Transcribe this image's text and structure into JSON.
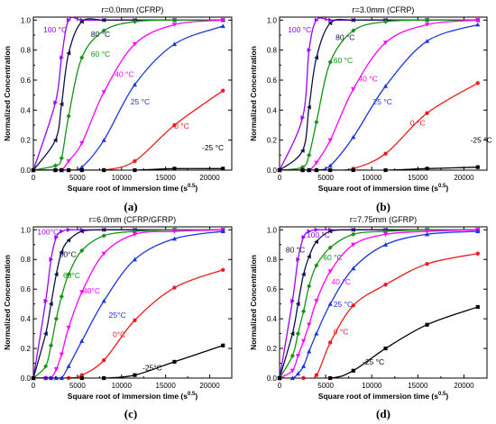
{
  "figure": {
    "xlabel": "Square root of immersion time (s",
    "xlabel_exp": "0.5",
    "xlabel_close": ")",
    "ylabel": "Normalized Concentration",
    "x_ticks": [
      "0",
      "5000",
      "10000",
      "15000",
      "20000"
    ],
    "y_ticks": [
      "0.0",
      "0.2",
      "0.4",
      "0.6",
      "0.8",
      "1.0"
    ]
  },
  "chart_data": [
    {
      "type": "line",
      "caption": "(a)",
      "title": "r=0.0mm (CFRP)",
      "xlim": [
        0,
        22500
      ],
      "ylim": [
        0,
        1.02
      ],
      "series": [
        {
          "name": "100 °C",
          "color": "#9b00ff",
          "marker": "triangle-right",
          "x": [
            0,
            2500,
            3200,
            4000,
            5500,
            8000,
            11500,
            16000,
            21500
          ],
          "y": [
            0,
            0.45,
            0.75,
            1.0,
            1.0,
            1.0,
            1.0,
            1.0,
            1.0
          ]
        },
        {
          "name": "80 °C",
          "color": "#10104a",
          "marker": "triangle-left",
          "x": [
            0,
            2500,
            3200,
            4000,
            5500,
            8000,
            11500,
            16000,
            21500
          ],
          "y": [
            0,
            0.2,
            0.44,
            0.78,
            0.99,
            1.0,
            1.0,
            1.0,
            1.0
          ]
        },
        {
          "name": "60 °C",
          "color": "#139413",
          "marker": "diamond",
          "x": [
            0,
            2500,
            3200,
            4000,
            5500,
            8000,
            11500,
            16000,
            21500
          ],
          "y": [
            0,
            0.03,
            0.08,
            0.36,
            0.75,
            0.93,
            0.99,
            1.0,
            1.0
          ]
        },
        {
          "name": "40 °C",
          "color": "#ff00ff",
          "marker": "triangle-down",
          "x": [
            0,
            2500,
            3200,
            4000,
            5500,
            8000,
            11500,
            16000,
            21500
          ],
          "y": [
            0,
            0,
            0,
            0.06,
            0.18,
            0.52,
            0.84,
            0.97,
            1.0
          ]
        },
        {
          "name": "25 °C",
          "color": "#1a36e0",
          "marker": "triangle-up",
          "x": [
            0,
            2500,
            3200,
            4000,
            5500,
            8000,
            11500,
            16000,
            21500
          ],
          "y": [
            0,
            0,
            0,
            0,
            0.02,
            0.2,
            0.57,
            0.84,
            0.96
          ]
        },
        {
          "name": "0 °C",
          "color": "#ee1c1c",
          "marker": "circle",
          "x": [
            0,
            2500,
            3200,
            4000,
            5500,
            8000,
            11500,
            16000,
            21500
          ],
          "y": [
            0,
            0,
            0,
            0,
            0,
            0,
            0.06,
            0.3,
            0.53
          ]
        },
        {
          "name": "-25 °C",
          "color": "#000000",
          "marker": "square",
          "x": [
            0,
            2500,
            3200,
            4000,
            5500,
            8000,
            11500,
            16000,
            21500
          ],
          "y": [
            0,
            0,
            0,
            0,
            0,
            0,
            0,
            0.01,
            0.01
          ]
        }
      ]
    },
    {
      "type": "line",
      "caption": "(b)",
      "title": "r=3.0mm (CFRP)",
      "xlim": [
        0,
        22500
      ],
      "ylim": [
        0,
        1.02
      ],
      "series": [
        {
          "name": "100 °C",
          "color": "#9b00ff",
          "marker": "triangle-right",
          "x": [
            0,
            2500,
            3200,
            4000,
            5500,
            8000,
            11500,
            16000,
            21500
          ],
          "y": [
            0,
            0.35,
            0.8,
            1.0,
            1.0,
            1.0,
            1.0,
            1.0,
            1.0
          ]
        },
        {
          "name": "80 °C",
          "color": "#10104a",
          "marker": "triangle-left",
          "x": [
            0,
            2500,
            3200,
            4000,
            5500,
            8000,
            11500,
            16000,
            21500
          ],
          "y": [
            0,
            0.13,
            0.42,
            0.75,
            0.98,
            1.0,
            1.0,
            1.0,
            1.0
          ]
        },
        {
          "name": "60 °C",
          "color": "#139413",
          "marker": "diamond",
          "x": [
            0,
            2500,
            3200,
            4000,
            5500,
            8000,
            11500,
            16000,
            21500
          ],
          "y": [
            0,
            0.02,
            0.1,
            0.32,
            0.72,
            0.93,
            0.99,
            1.0,
            1.0
          ]
        },
        {
          "name": "40 °C",
          "color": "#ff00ff",
          "marker": "triangle-down",
          "x": [
            0,
            2500,
            3200,
            4000,
            5500,
            8000,
            11500,
            16000,
            21500
          ],
          "y": [
            0,
            0,
            0,
            0.05,
            0.2,
            0.54,
            0.85,
            0.97,
            1.0
          ]
        },
        {
          "name": "25 °C",
          "color": "#1a36e0",
          "marker": "triangle-up",
          "x": [
            0,
            2500,
            3200,
            4000,
            5500,
            8000,
            11500,
            16000,
            21500
          ],
          "y": [
            0,
            0,
            0,
            0,
            0.03,
            0.22,
            0.56,
            0.86,
            0.97
          ]
        },
        {
          "name": "0 °C",
          "color": "#ee1c1c",
          "marker": "circle",
          "x": [
            0,
            2500,
            3200,
            4000,
            5500,
            8000,
            11500,
            16000,
            21500
          ],
          "y": [
            0,
            0,
            0,
            0,
            0,
            0.01,
            0.11,
            0.38,
            0.58
          ]
        },
        {
          "name": "-25 °C",
          "color": "#000000",
          "marker": "square",
          "x": [
            0,
            2500,
            3200,
            4000,
            5500,
            8000,
            11500,
            16000,
            21500
          ],
          "y": [
            0,
            0,
            0,
            0,
            0,
            0,
            0,
            0.01,
            0.02
          ]
        }
      ]
    },
    {
      "type": "line",
      "caption": "(c)",
      "title": "r=6.0mm (CFRP/GFRP)",
      "xlim": [
        0,
        22500
      ],
      "ylim": [
        0,
        1.02
      ],
      "series": [
        {
          "name": "100°C",
          "color": "#9b00ff",
          "marker": "triangle-right",
          "x": [
            0,
            1400,
            2000,
            2600,
            3200,
            4000,
            5500,
            8000,
            11500,
            16000,
            21500
          ],
          "y": [
            0,
            0.52,
            0.8,
            0.95,
            0.99,
            1.0,
            1.0,
            1.0,
            1.0,
            1.0,
            1.0
          ]
        },
        {
          "name": "80°C",
          "color": "#10104a",
          "marker": "triangle-left",
          "x": [
            0,
            1400,
            2000,
            2600,
            3200,
            4000,
            5500,
            8000,
            11500,
            16000,
            21500
          ],
          "y": [
            0,
            0.3,
            0.5,
            0.7,
            0.85,
            0.93,
            0.99,
            1.0,
            1.0,
            1.0,
            1.0
          ]
        },
        {
          "name": "60°C",
          "color": "#139413",
          "marker": "diamond",
          "x": [
            0,
            1400,
            2000,
            2600,
            3200,
            4000,
            5500,
            8000,
            11500,
            16000,
            21500
          ],
          "y": [
            0,
            0.08,
            0.22,
            0.4,
            0.55,
            0.7,
            0.86,
            0.96,
            0.99,
            1.0,
            1.0
          ]
        },
        {
          "name": "40°C",
          "color": "#ff00ff",
          "marker": "triangle-down",
          "x": [
            0,
            1400,
            2000,
            2600,
            3200,
            4000,
            5500,
            8000,
            11500,
            16000,
            21500
          ],
          "y": [
            0,
            0,
            0,
            0.06,
            0.16,
            0.34,
            0.58,
            0.84,
            0.97,
            0.99,
            1.0
          ]
        },
        {
          "name": "25°C",
          "color": "#1a36e0",
          "marker": "triangle-up",
          "x": [
            0,
            1400,
            2000,
            2600,
            3200,
            4000,
            5500,
            8000,
            11500,
            16000,
            21500
          ],
          "y": [
            0,
            0,
            0,
            0,
            0,
            0.08,
            0.25,
            0.52,
            0.8,
            0.94,
            0.99
          ]
        },
        {
          "name": "0°C",
          "color": "#ee1c1c",
          "marker": "circle",
          "x": [
            0,
            4000,
            5500,
            8000,
            11500,
            16000,
            21500
          ],
          "y": [
            0,
            0,
            0.02,
            0.12,
            0.39,
            0.61,
            0.73
          ]
        },
        {
          "name": "-25°C",
          "color": "#000000",
          "marker": "square",
          "x": [
            0,
            5500,
            8000,
            11500,
            16000,
            21500
          ],
          "y": [
            0,
            0,
            0,
            0.02,
            0.11,
            0.22
          ]
        }
      ]
    },
    {
      "type": "line",
      "caption": "(d)",
      "title": "r=7.75mm (GFRP)",
      "xlim": [
        0,
        22500
      ],
      "ylim": [
        0,
        1.02
      ],
      "series": [
        {
          "name": "100 °C",
          "color": "#9b00ff",
          "marker": "triangle-right",
          "x": [
            0,
            1400,
            2000,
            2600,
            3200,
            4000,
            5500,
            8000,
            11500,
            16000,
            21500
          ],
          "y": [
            0,
            0.52,
            0.8,
            0.95,
            0.99,
            1.0,
            1.0,
            1.0,
            1.0,
            1.0,
            1.0
          ]
        },
        {
          "name": "80 °C",
          "color": "#10104a",
          "marker": "triangle-left",
          "x": [
            0,
            1400,
            2000,
            2600,
            3200,
            4000,
            5500,
            8000,
            11500,
            16000,
            21500
          ],
          "y": [
            0,
            0.3,
            0.5,
            0.7,
            0.82,
            0.92,
            0.99,
            1.0,
            1.0,
            1.0,
            1.0
          ]
        },
        {
          "name": "60 °C",
          "color": "#139413",
          "marker": "diamond",
          "x": [
            0,
            1400,
            2000,
            2600,
            3200,
            4000,
            5500,
            8000,
            11500,
            16000,
            21500
          ],
          "y": [
            0,
            0.15,
            0.3,
            0.45,
            0.62,
            0.76,
            0.88,
            0.97,
            0.99,
            1.0,
            1.0
          ]
        },
        {
          "name": "40 °C",
          "color": "#ff00ff",
          "marker": "triangle-down",
          "x": [
            0,
            1400,
            2000,
            2600,
            3200,
            4000,
            5500,
            8000,
            11500,
            16000,
            21500
          ],
          "y": [
            0,
            0.05,
            0.15,
            0.25,
            0.36,
            0.52,
            0.72,
            0.9,
            0.97,
            0.99,
            1.0
          ]
        },
        {
          "name": "25 °C",
          "color": "#1a36e0",
          "marker": "triangle-up",
          "x": [
            0,
            1400,
            2000,
            2600,
            3200,
            4000,
            5500,
            8000,
            11500,
            16000,
            21500
          ],
          "y": [
            0,
            0,
            0.03,
            0.08,
            0.18,
            0.3,
            0.5,
            0.74,
            0.9,
            0.97,
            0.99
          ]
        },
        {
          "name": "0 °C",
          "color": "#ee1c1c",
          "marker": "circle",
          "x": [
            0,
            2600,
            4000,
            5500,
            8000,
            11500,
            16000,
            21500
          ],
          "y": [
            0,
            0,
            0.02,
            0.24,
            0.49,
            0.63,
            0.77,
            0.84
          ]
        },
        {
          "name": "-25 °C",
          "color": "#000000",
          "marker": "square",
          "x": [
            0,
            5500,
            8000,
            11500,
            16000,
            21500
          ],
          "y": [
            0,
            0,
            0.05,
            0.2,
            0.36,
            0.48
          ]
        }
      ]
    }
  ]
}
